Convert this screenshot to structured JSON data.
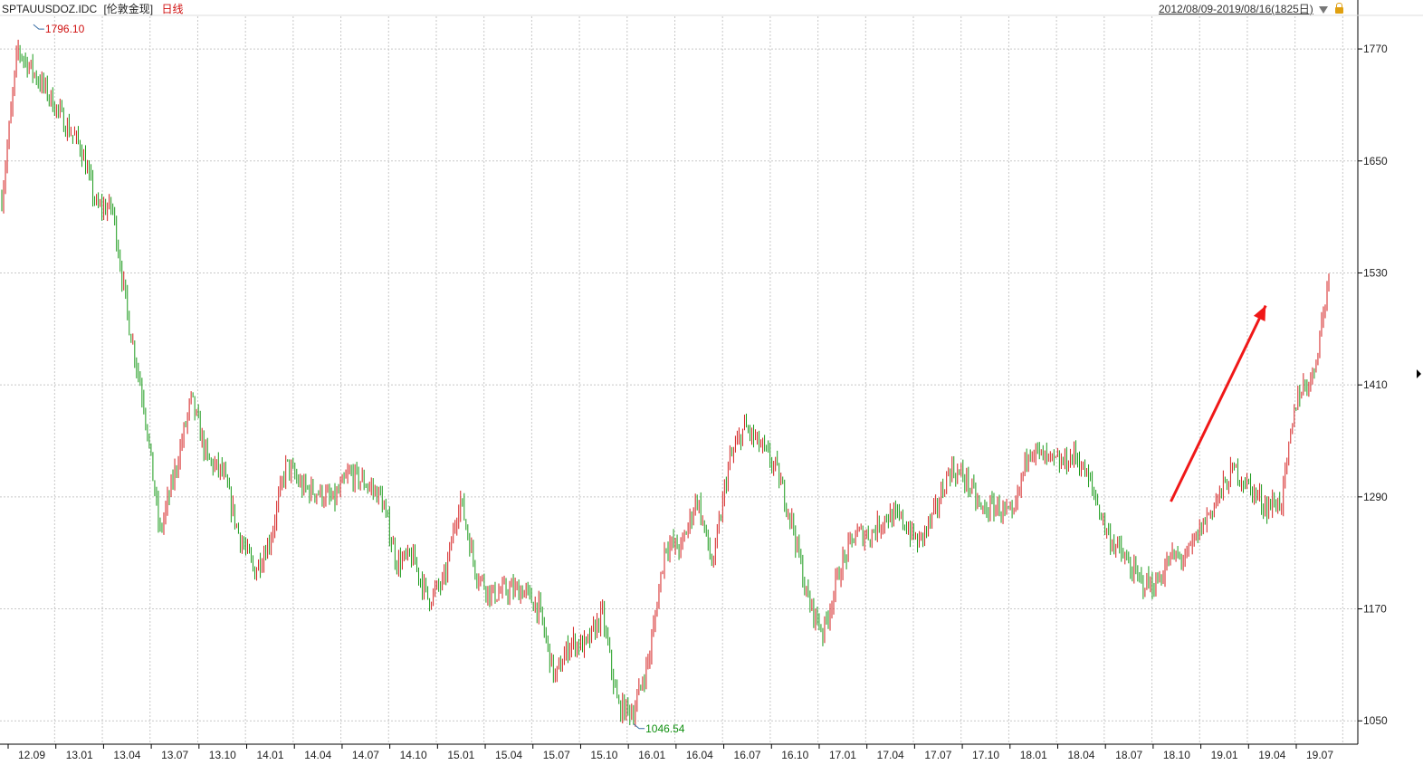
{
  "header": {
    "symbol": "SPTAUUSDOZ.IDC",
    "market": "[伦敦金现]",
    "period": "日线",
    "range": "2012/08/09-2019/08/16(1825日)"
  },
  "chart_data": {
    "type": "candlestick",
    "title": "SPTAUUSDOZ.IDC [伦敦金现] 日线",
    "ylim": [
      1025,
      1805
    ],
    "yticks": [
      1050,
      1170,
      1290,
      1410,
      1530,
      1650,
      1770
    ],
    "x_tick_labels": [
      "12.09",
      "13.01",
      "13.04",
      "13.07",
      "13.10",
      "14.01",
      "14.04",
      "14.07",
      "14.10",
      "15.01",
      "15.04",
      "15.07",
      "15.10",
      "16.01",
      "16.04",
      "16.07",
      "16.10",
      "17.01",
      "17.04",
      "17.07",
      "17.10",
      "18.01",
      "18.04",
      "18.07",
      "18.10",
      "19.01",
      "19.04",
      "19.07"
    ],
    "series": [
      {
        "name": "close",
        "x": [
          "2012-08",
          "2012-09",
          "2012-10",
          "2012-11",
          "2012-12",
          "2013-01",
          "2013-02",
          "2013-03",
          "2013-04",
          "2013-05",
          "2013-06",
          "2013-07",
          "2013-08",
          "2013-09",
          "2013-10",
          "2013-11",
          "2013-12",
          "2014-01",
          "2014-02",
          "2014-03",
          "2014-04",
          "2014-05",
          "2014-06",
          "2014-07",
          "2014-08",
          "2014-09",
          "2014-10",
          "2014-11",
          "2014-12",
          "2015-01",
          "2015-02",
          "2015-03",
          "2015-04",
          "2015-05",
          "2015-06",
          "2015-07",
          "2015-08",
          "2015-09",
          "2015-10",
          "2015-11",
          "2015-12",
          "2016-01",
          "2016-02",
          "2016-03",
          "2016-04",
          "2016-05",
          "2016-06",
          "2016-07",
          "2016-08",
          "2016-09",
          "2016-10",
          "2016-11",
          "2016-12",
          "2017-01",
          "2017-02",
          "2017-03",
          "2017-04",
          "2017-05",
          "2017-06",
          "2017-07",
          "2017-08",
          "2017-09",
          "2017-10",
          "2017-11",
          "2017-12",
          "2018-01",
          "2018-02",
          "2018-03",
          "2018-04",
          "2018-05",
          "2018-06",
          "2018-07",
          "2018-08",
          "2018-09",
          "2018-10",
          "2018-11",
          "2018-12",
          "2019-01",
          "2019-02",
          "2019-03",
          "2019-04",
          "2019-05",
          "2019-06",
          "2019-07",
          "2019-08"
        ],
        "values": [
          1610,
          1770,
          1745,
          1720,
          1690,
          1665,
          1600,
          1600,
          1480,
          1390,
          1250,
          1320,
          1395,
          1330,
          1315,
          1250,
          1210,
          1245,
          1325,
          1300,
          1295,
          1285,
          1315,
          1305,
          1290,
          1220,
          1225,
          1180,
          1200,
          1290,
          1210,
          1185,
          1190,
          1190,
          1170,
          1095,
          1135,
          1130,
          1165,
          1065,
          1060,
          1120,
          1240,
          1235,
          1290,
          1215,
          1325,
          1365,
          1345,
          1320,
          1265,
          1180,
          1145,
          1210,
          1250,
          1250,
          1270,
          1265,
          1240,
          1270,
          1320,
          1310,
          1275,
          1280,
          1265,
          1345,
          1330,
          1325,
          1335,
          1300,
          1250,
          1225,
          1200,
          1195,
          1225,
          1225,
          1260,
          1290,
          1320,
          1300,
          1280,
          1285,
          1400,
          1420,
          1525
        ]
      },
      {
        "name": "high",
        "note": "extremes",
        "values": [
          1796.1
        ]
      },
      {
        "name": "low",
        "note": "extremes",
        "values": [
          1046.54
        ]
      }
    ],
    "annotations": [
      {
        "label": "1796.10",
        "x": "2012-10",
        "y": 1796.1,
        "color": "#d01010"
      },
      {
        "label": "1046.54",
        "x": "2015-12",
        "y": 1046.54,
        "color": "#109010"
      }
    ],
    "arrow": {
      "from": [
        "2018-10",
        1285
      ],
      "to": [
        "2019-04",
        1495
      ],
      "color": "#f01818"
    },
    "grid": true,
    "colors": {
      "up": "#d42020",
      "down": "#1a9a1a",
      "grid": "#c8c8c8",
      "axis": "#000000"
    }
  }
}
